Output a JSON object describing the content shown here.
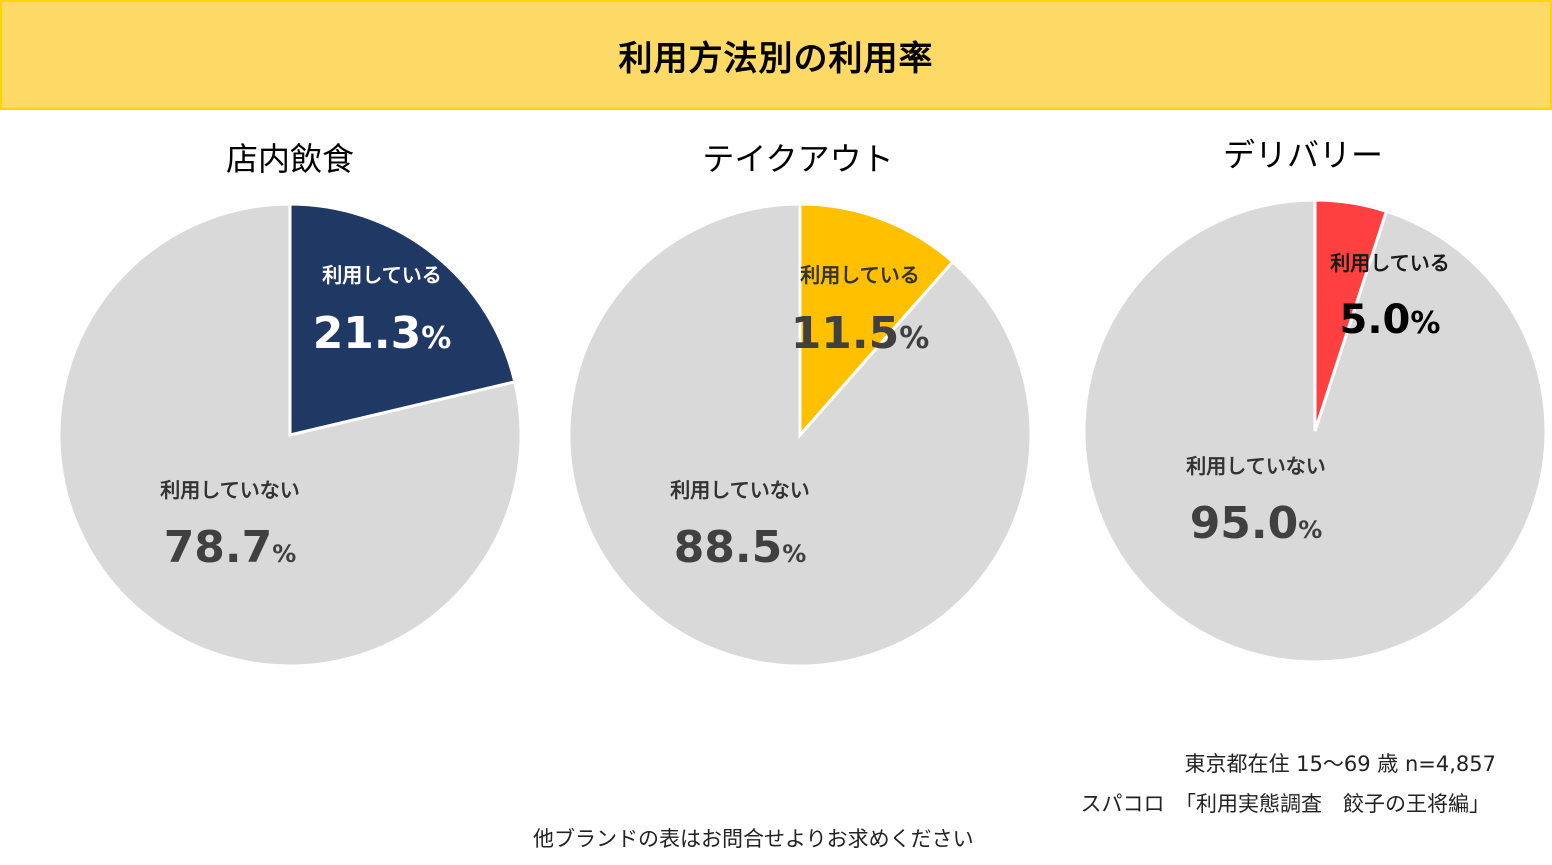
{
  "header": {
    "title": "利用方法別の利用率"
  },
  "colors": {
    "banner_bg": "#fdd966",
    "banner_border": "#ffd500",
    "not_using": "#d9d9d9",
    "dine_in": "#1f3864",
    "takeout": "#ffc000",
    "delivery": "#ff4040"
  },
  "chart_data": [
    {
      "type": "pie",
      "title": "店内飲食",
      "slices": [
        {
          "label": "利用している",
          "value": 21.3,
          "display": "21.3",
          "unit": "%"
        },
        {
          "label": "利用していない",
          "value": 78.7,
          "display": "78.7",
          "unit": "%"
        }
      ]
    },
    {
      "type": "pie",
      "title": "テイクアウト",
      "slices": [
        {
          "label": "利用している",
          "value": 11.5,
          "display": "11.5",
          "unit": "%"
        },
        {
          "label": "利用していない",
          "value": 88.5,
          "display": "88.5",
          "unit": "%"
        }
      ]
    },
    {
      "type": "pie",
      "title": "デリバリー",
      "slices": [
        {
          "label": "利用している",
          "value": 5.0,
          "display": "5.0",
          "unit": "%"
        },
        {
          "label": "利用していない",
          "value": 95.0,
          "display": "95.0",
          "unit": "%"
        }
      ]
    }
  ],
  "footer": {
    "sample": "東京都在住 15～69 歳 n=4,857",
    "source": "スパコロ　「利用実態調査　餃子の王将編」",
    "note": "他ブランドの表はお問合せよりお求めください"
  }
}
